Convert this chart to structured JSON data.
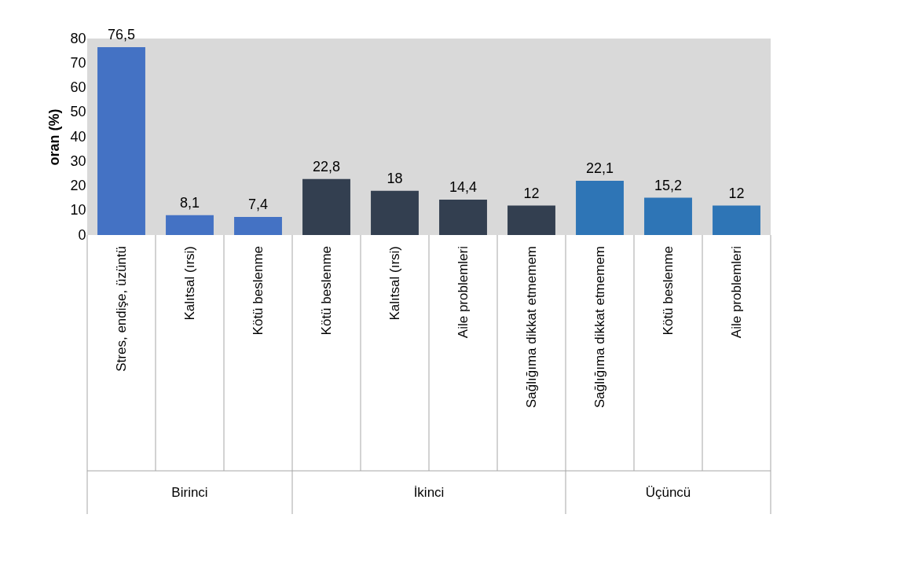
{
  "chart_data": {
    "type": "bar",
    "ylabel": "oran (%)",
    "categories": [
      "Stres, endişe, üzüntü",
      "Kalıtsal (ırsi)",
      "Kötü beslenme",
      "Kötü beslenme",
      "Kalıtsal (ırsi)",
      "Aile problemleri",
      "Sağlığıma dikkat etmemem",
      "Sağlığıma dikkat etmemem",
      "Kötü beslenme",
      "Aile problemleri"
    ],
    "series": [
      {
        "color": "#4472c4",
        "values": [
          76.5,
          8.1,
          7.4,
          null,
          null,
          null,
          null,
          null,
          null,
          null
        ],
        "value_labels": [
          "76,5",
          "8,1",
          "7,4",
          null,
          null,
          null,
          null,
          null,
          null,
          null
        ]
      },
      {
        "color": "#333f50",
        "values": [
          null,
          null,
          null,
          22.8,
          18,
          14.4,
          12,
          null,
          null,
          null
        ],
        "value_labels": [
          null,
          null,
          null,
          "22,8",
          "18",
          "14,4",
          "12",
          null,
          null,
          null
        ]
      },
      {
        "color": "#2e75b6",
        "values": [
          null,
          null,
          null,
          null,
          null,
          null,
          null,
          22.1,
          15.2,
          12
        ],
        "value_labels": [
          null,
          null,
          null,
          null,
          null,
          null,
          null,
          "22,1",
          "15,2",
          "12"
        ]
      }
    ],
    "annotations": [
      "Birinci",
      "İkinci",
      "Üçüncü"
    ],
    "ylim": [
      0,
      80
    ],
    "yticks": [
      0,
      10,
      20,
      30,
      40,
      50,
      60,
      70,
      80
    ],
    "grid": false
  }
}
